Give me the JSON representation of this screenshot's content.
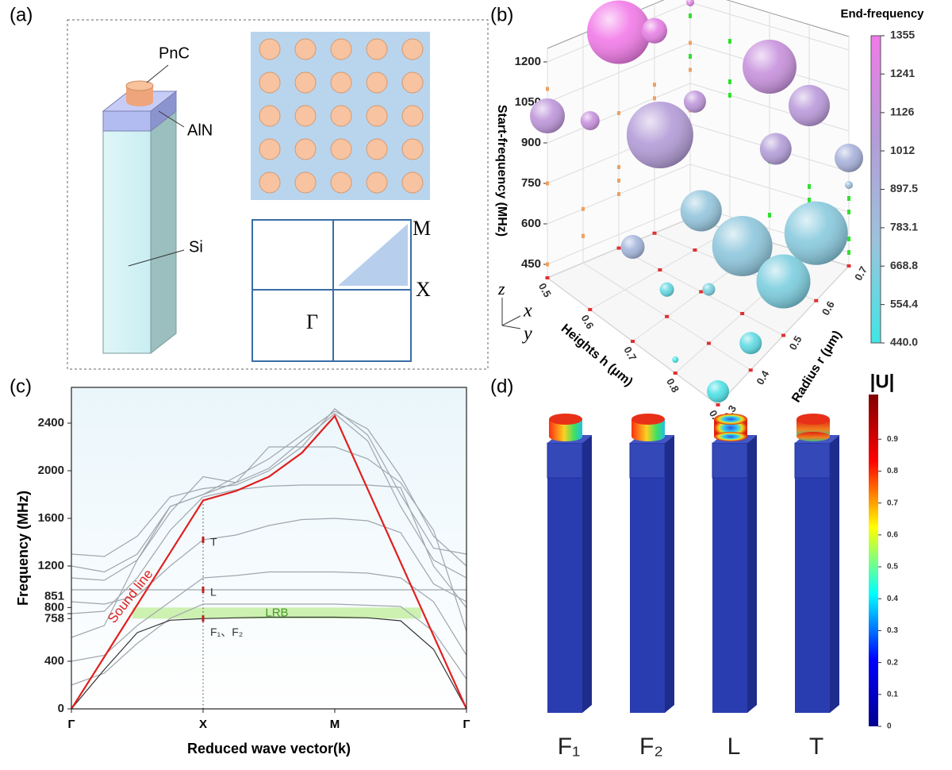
{
  "panels": {
    "a": "(a)",
    "b": "(b)",
    "c": "(c)",
    "d": "(d)"
  },
  "diagram_a": {
    "labels": {
      "pnc": "PnC",
      "aln": "AlN",
      "si": "Si"
    },
    "brillouin": {
      "m": "M",
      "x": "X",
      "gamma": "Γ"
    }
  },
  "chart_data": [
    {
      "type": "scatter3d",
      "xlabel": "Heights h (μm)",
      "ylabel": "Radius r (μm)",
      "zlabel": "Start-frequency (MHz)",
      "colorbar_title": "End-frequency",
      "axis_indicator": {
        "z": "z",
        "x": "x",
        "y": "y"
      },
      "xlim": [
        0.5,
        0.9
      ],
      "xticks": [
        0.5,
        0.6,
        0.7,
        0.8,
        0.9
      ],
      "ylim": [
        0.3,
        0.7
      ],
      "yticks": [
        0.3,
        0.4,
        0.5,
        0.6,
        0.7
      ],
      "zlim": [
        400,
        1250
      ],
      "zticks": [
        450,
        600,
        750,
        900,
        1050,
        1200
      ],
      "clim": [
        440,
        1355
      ],
      "cticks": [
        1355,
        1241,
        1126,
        1012,
        897.5,
        783.1,
        668.8,
        554.4,
        {
          "value": 440,
          "label": "440.0"
        }
      ],
      "colormap": [
        "#40e6e6",
        "#9cc2dc",
        "#b49cd8",
        "#f27ae8"
      ],
      "wall_colors": {
        "floor": "#e03030",
        "left": "#f0a060",
        "right": "#30e030"
      },
      "x": [
        0.5,
        0.5,
        0.5,
        0.6,
        0.5,
        0.6,
        0.6,
        0.7,
        0.8,
        0.8,
        0.7,
        0.9,
        0.7,
        0.8,
        0.9,
        0.9,
        0.7,
        0.8,
        0.9,
        0.9,
        0.8,
        0.9
      ],
      "y": [
        0.5,
        0.6,
        0.7,
        0.3,
        0.3,
        0.5,
        0.6,
        0.7,
        0.7,
        0.6,
        0.3,
        0.7,
        0.5,
        0.5,
        0.6,
        0.5,
        0.4,
        0.4,
        0.4,
        0.3,
        0.3,
        0.7
      ],
      "z": [
        1200,
        1150,
        1200,
        1100,
        1000,
        900,
        950,
        1050,
        950,
        900,
        750,
        800,
        700,
        650,
        650,
        600,
        500,
        600,
        500,
        450,
        450,
        700
      ],
      "c": [
        1355,
        1300,
        1250,
        1150,
        1100,
        1050,
        1100,
        1150,
        1080,
        1040,
        850,
        880,
        720,
        700,
        680,
        640,
        560,
        620,
        540,
        480,
        460,
        760
      ],
      "size": [
        40,
        16,
        5,
        12,
        22,
        42,
        14,
        34,
        26,
        20,
        15,
        18,
        26,
        38,
        40,
        34,
        9,
        8,
        14,
        14,
        4,
        5
      ]
    },
    {
      "type": "line",
      "xlabel": "Reduced wave vector(k)",
      "ylabel": "Frequency (MHz)",
      "xlim": [
        0,
        3
      ],
      "xticks": [
        {
          "value": 0,
          "label": "Γ"
        },
        {
          "value": 1,
          "label": "X"
        },
        {
          "value": 2,
          "label": "M"
        },
        {
          "value": 3,
          "label": "Γ"
        }
      ],
      "ylim": [
        0,
        2700
      ],
      "yticks": [
        0,
        400,
        758,
        800,
        851,
        1200,
        1600,
        2000,
        2400
      ],
      "x": [
        0,
        0.25,
        0.5,
        0.75,
        1,
        1.25,
        1.5,
        1.75,
        2,
        2.25,
        2.5,
        2.75,
        3
      ],
      "series": [
        {
          "name": "Sound line",
          "color": "#e02020",
          "values": [
            0,
            437,
            875,
            1312,
            1750,
            1830,
            1950,
            2150,
            2460,
            1845,
            1230,
            615,
            0
          ]
        },
        {
          "color": "#333333",
          "values": [
            0,
            330,
            640,
            745,
            758,
            765,
            770,
            770,
            770,
            765,
            740,
            500,
            0
          ]
        },
        {
          "color": "#a0a6ae",
          "values": [
            1300,
            1280,
            1450,
            1780,
            1850,
            1880,
            2000,
            2200,
            2520,
            2300,
            1800,
            1350,
            1300
          ]
        },
        {
          "color": "#a0a6ae",
          "values": [
            1200,
            1150,
            1300,
            1700,
            1800,
            1950,
            2100,
            2300,
            2500,
            2350,
            1950,
            1450,
            1200
          ]
        },
        {
          "color": "#a0a6ae",
          "values": [
            1100,
            1080,
            1250,
            1650,
            1950,
            1900,
            2020,
            2250,
            2480,
            2250,
            1700,
            1250,
            1100
          ]
        },
        {
          "color": "#a0a6ae",
          "values": [
            1000,
            1000,
            1000,
            1000,
            1000,
            1000,
            1000,
            1000,
            1000,
            1000,
            1000,
            1000,
            1000
          ]
        },
        {
          "color": "#a0a6ae",
          "values": [
            900,
            880,
            950,
            1200,
            1420,
            1460,
            1540,
            1590,
            1600,
            1580,
            1480,
            1050,
            900
          ]
        },
        {
          "color": "#a0a6ae",
          "values": [
            800,
            820,
            1100,
            1500,
            1780,
            1840,
            1870,
            1880,
            1880,
            1880,
            1860,
            1200,
            850
          ]
        },
        {
          "color": "#a0a6ae",
          "values": [
            600,
            700,
            1250,
            1700,
            1800,
            1900,
            2200,
            2200,
            2200,
            2100,
            1900,
            1500,
            650
          ]
        },
        {
          "color": "#a0a6ae",
          "values": [
            400,
            450,
            700,
            900,
            1100,
            1120,
            1150,
            1150,
            1150,
            1140,
            1100,
            900,
            450
          ]
        },
        {
          "color": "#a0a6ae",
          "values": [
            200,
            300,
            550,
            760,
            880,
            880,
            880,
            880,
            880,
            870,
            860,
            650,
            250
          ]
        }
      ],
      "band": {
        "label": "LRB",
        "range": [
          758,
          851
        ],
        "color": "#c6efa2"
      },
      "mode_x": 1,
      "marker_color": "#c02020",
      "modes": [
        {
          "label": "F₁、F₂",
          "value": 758
        },
        {
          "label": "L",
          "value": 1000
        },
        {
          "label": "T",
          "value": 1420
        }
      ]
    }
  ],
  "mode_shapes": {
    "labels": [
      "F₁",
      "F₂",
      "L",
      "T"
    ],
    "colorbar": {
      "title": "|U|",
      "lim": [
        0,
        1.04
      ],
      "ticks": [
        0,
        0.1,
        0.2,
        0.3,
        0.4,
        0.5,
        0.6,
        0.7,
        0.8,
        0.9
      ],
      "colormap": [
        "#00008f",
        "#0000ff",
        "#00ffff",
        "#ffff00",
        "#ff0000",
        "#800000"
      ]
    }
  }
}
